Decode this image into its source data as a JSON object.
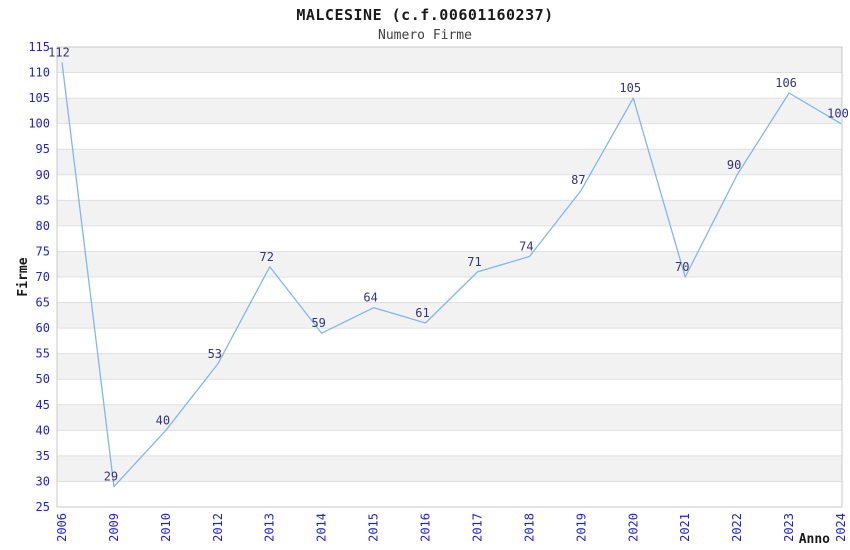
{
  "chart_data": {
    "type": "line",
    "title": "MALCESINE (c.f.00601160237)",
    "subtitle": "Numero Firme",
    "xlabel": "Anno",
    "ylabel": "Firme",
    "categories": [
      "2006",
      "2009",
      "2010",
      "2012",
      "2013",
      "2014",
      "2015",
      "2016",
      "2017",
      "2018",
      "2019",
      "2020",
      "2021",
      "2022",
      "2023",
      "2024"
    ],
    "series": [
      {
        "name": "Numero Firme",
        "values": [
          112,
          29,
          40,
          53,
          72,
          59,
          64,
          61,
          71,
          74,
          87,
          105,
          70,
          90,
          106,
          100
        ]
      }
    ],
    "ylim": [
      25,
      115
    ],
    "yticks": [
      25,
      30,
      35,
      40,
      45,
      50,
      55,
      60,
      65,
      70,
      75,
      80,
      85,
      90,
      95,
      100,
      105,
      110,
      115
    ],
    "point_labels_visible": true,
    "legend": "none",
    "grid": "horizontal-bands-every-5",
    "x_tick_rotation": -90,
    "colors": {
      "line": "#84b6ea",
      "tick_label": "#2222cf",
      "point_label": "#333377",
      "band_fill": "#f2f2f2",
      "gridline": "#e0e0e0",
      "plot_border": "#c8c8c8",
      "title": "#1a1a1a",
      "subtitle": "#404040",
      "axis_title": "#1a1a1a"
    }
  }
}
